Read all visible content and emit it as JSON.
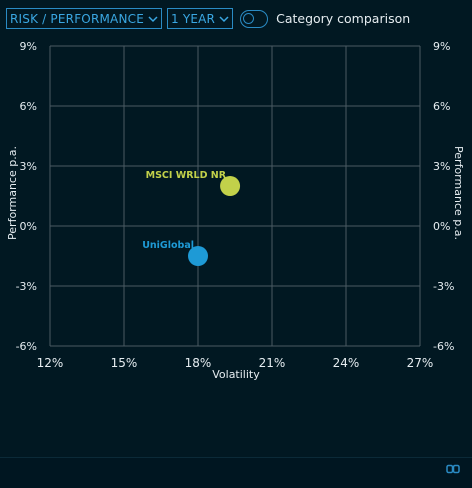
{
  "toolbar": {
    "view_select": "RISK / PERFORMANCE",
    "period_select": "1 YEAR",
    "category_toggle_label": "Category comparison",
    "category_toggle_on": false
  },
  "icons": {
    "dropdown": "chevron-down-icon",
    "footer": "link-icon"
  },
  "colors": {
    "background": "#011822",
    "accent": "#2a8bc4",
    "grid": "#4a5a63",
    "series_uniglobal": "#1e9ad6",
    "series_msci": "#c2d14a"
  },
  "chart_data": {
    "type": "scatter",
    "xlabel": "Volatility",
    "ylabel": "Performance p.a.",
    "ylabel_right": "Performance p.a.",
    "xlim": [
      12,
      27
    ],
    "ylim": [
      -6,
      9
    ],
    "x_ticks": [
      "12%",
      "15%",
      "18%",
      "21%",
      "24%",
      "27%"
    ],
    "y_ticks": [
      "9%",
      "6%",
      "3%",
      "0%",
      "-3%",
      "-6%"
    ],
    "grid": true,
    "series": [
      {
        "name": "UniGlobal",
        "x": 18.0,
        "y": -1.5,
        "color": "#1e9ad6"
      },
      {
        "name": "MSCI WRLD NR",
        "x": 19.3,
        "y": 2.0,
        "color": "#c2d14a"
      }
    ]
  }
}
